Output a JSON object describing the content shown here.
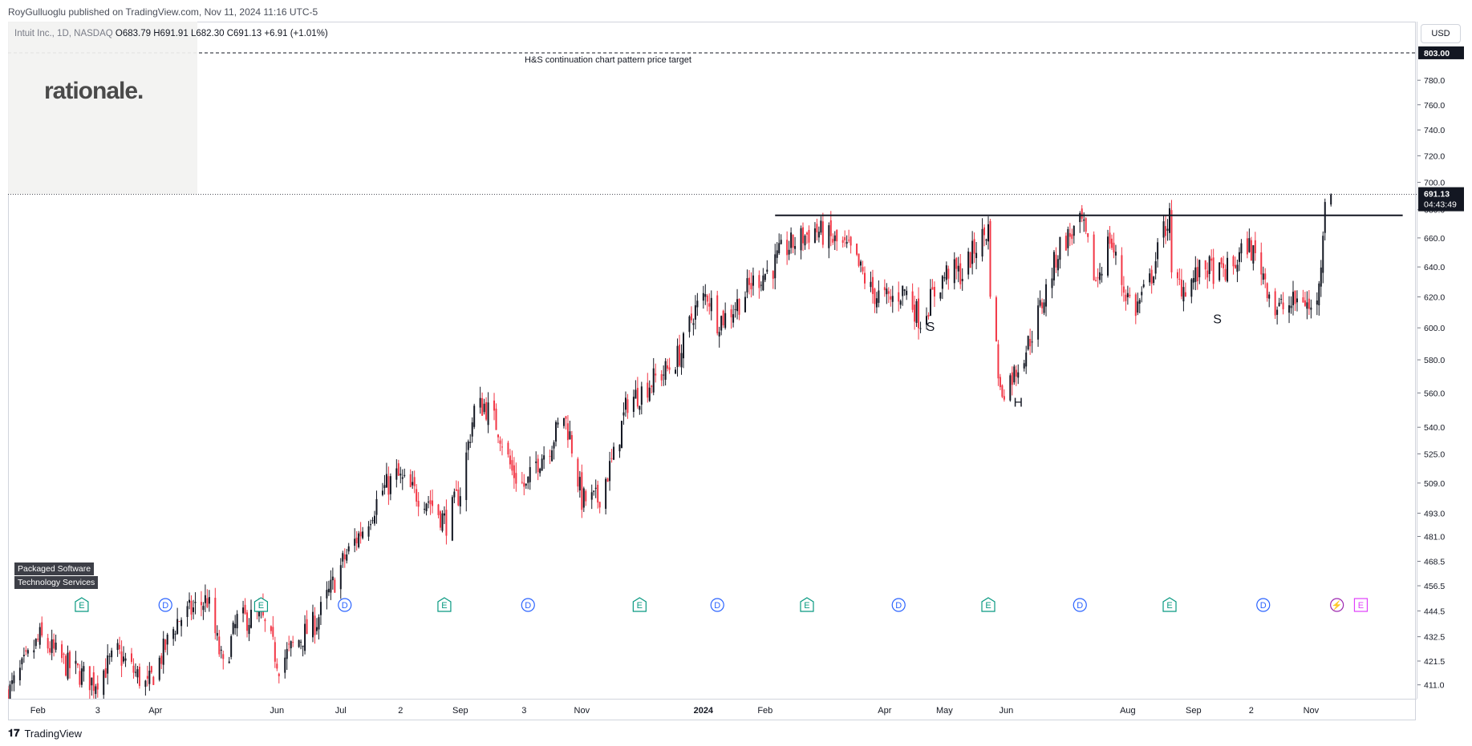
{
  "header": {
    "published": "RoyGulluoglu published on TradingView.com, Nov 11, 2024 11:16 UTC-5"
  },
  "legend": {
    "symbol": "Intuit Inc., 1D, NASDAQ",
    "open": "O683.79",
    "high": "H691.91",
    "low": "L682.30",
    "close": "C691.13",
    "change": "+6.91 (+1.01%)"
  },
  "currency": "USD",
  "watermark": "rationale.",
  "sectors": [
    "Packaged Software",
    "Technology Services"
  ],
  "annotations": {
    "target_label": "H&S continuation chart pattern price target",
    "target_price": "803.00",
    "last_price": "691.13",
    "countdown": "04:43:49",
    "left_shoulder": "S",
    "head": "H",
    "right_shoulder": "S"
  },
  "footer": {
    "brand": "TradingView"
  },
  "colors": {
    "up": "#131722",
    "down": "#f23645",
    "dividend": "#2962ff",
    "earnings": "#089981",
    "split": "#9c27b0",
    "earnings_future": "#e040fb"
  },
  "chart_data": {
    "type": "candlestick",
    "scale": "log",
    "ylim": [
      405,
      830
    ],
    "y_ticks": [
      411.0,
      421.5,
      432.5,
      444.5,
      456.5,
      468.5,
      481.0,
      493.0,
      509.0,
      525.0,
      540.0,
      560.0,
      580.0,
      600.0,
      620.0,
      640.0,
      660.0,
      680.0,
      700.0,
      720.0,
      740.0,
      760.0,
      780.0
    ],
    "x_ticks": [
      "Feb",
      "3",
      "Apr",
      "Jun",
      "Jul",
      "2",
      "Sep",
      "3",
      "Nov",
      "2024",
      "Feb",
      "Apr",
      "May",
      "Jun",
      "Aug",
      "Sep",
      "2",
      "Nov"
    ],
    "x_tick_dates": [
      "2023-02-01",
      "2023-03-03",
      "2023-04-01",
      "2023-06-01",
      "2023-07-03",
      "2023-08-02",
      "2023-09-01",
      "2023-10-03",
      "2023-11-01",
      "2024-01-01",
      "2024-02-01",
      "2024-04-01",
      "2024-05-01",
      "2024-06-01",
      "2024-08-01",
      "2024-09-03",
      "2024-10-02",
      "2024-11-01"
    ],
    "x_range": [
      "2023-01-17",
      "2024-12-24"
    ],
    "resistance": {
      "price": 676,
      "from": "2024-02-06",
      "to": "2024-12-17"
    },
    "target": 803,
    "last_close": 691.13,
    "events": [
      {
        "type": "E",
        "date": "2023-02-23"
      },
      {
        "type": "D",
        "date": "2023-04-06"
      },
      {
        "type": "E",
        "date": "2023-05-24"
      },
      {
        "type": "D",
        "date": "2023-07-05"
      },
      {
        "type": "E",
        "date": "2023-08-24"
      },
      {
        "type": "D",
        "date": "2023-10-05"
      },
      {
        "type": "E",
        "date": "2023-11-30"
      },
      {
        "type": "D",
        "date": "2024-01-08"
      },
      {
        "type": "E",
        "date": "2024-02-22"
      },
      {
        "type": "D",
        "date": "2024-04-08"
      },
      {
        "type": "E",
        "date": "2024-05-23"
      },
      {
        "type": "D",
        "date": "2024-07-08"
      },
      {
        "type": "E",
        "date": "2024-08-22"
      },
      {
        "type": "D",
        "date": "2024-10-08"
      },
      {
        "type": "split",
        "date": "2024-11-14"
      },
      {
        "type": "E_future",
        "date": "2024-11-26"
      }
    ],
    "path_dates": [
      "2023-01-17",
      "2023-02-02",
      "2023-02-15",
      "2023-03-01",
      "2023-03-13",
      "2023-03-28",
      "2023-04-12",
      "2023-04-27",
      "2023-05-05",
      "2023-05-12",
      "2023-05-24",
      "2023-06-02",
      "2023-06-09",
      "2023-06-21",
      "2023-07-05",
      "2023-07-14",
      "2023-07-24",
      "2023-07-31",
      "2023-08-07",
      "2023-08-16",
      "2023-08-25",
      "2023-09-01",
      "2023-09-08",
      "2023-09-13",
      "2023-09-20",
      "2023-09-27",
      "2023-10-04",
      "2023-10-09",
      "2023-10-16",
      "2023-10-23",
      "2023-10-26",
      "2023-11-01",
      "2023-11-09",
      "2023-11-17",
      "2023-11-24",
      "2023-11-30",
      "2023-12-07",
      "2023-12-14",
      "2023-12-21",
      "2023-12-27",
      "2024-01-03",
      "2024-01-08",
      "2024-01-12",
      "2024-01-19",
      "2024-01-26",
      "2024-02-05",
      "2024-02-09",
      "2024-02-16",
      "2024-02-26",
      "2024-03-04",
      "2024-03-15",
      "2024-03-26",
      "2024-04-04",
      "2024-04-11",
      "2024-04-19",
      "2024-04-26",
      "2024-05-03",
      "2024-05-10",
      "2024-05-17",
      "2024-05-23",
      "2024-05-24",
      "2024-05-29",
      "2024-06-05",
      "2024-06-12",
      "2024-06-20",
      "2024-06-28",
      "2024-07-09",
      "2024-07-16",
      "2024-07-23",
      "2024-07-30",
      "2024-08-05",
      "2024-08-12",
      "2024-08-19",
      "2024-08-22",
      "2024-08-23",
      "2024-08-30",
      "2024-09-09",
      "2024-09-16",
      "2024-09-23",
      "2024-09-30",
      "2024-10-07",
      "2024-10-14",
      "2024-10-21",
      "2024-10-28",
      "2024-11-01",
      "2024-11-05",
      "2024-11-08",
      "2024-11-11"
    ],
    "path_closes": [
      407,
      432,
      420,
      412,
      425,
      410,
      440,
      450,
      418,
      440,
      442,
      420,
      428,
      440,
      470,
      485,
      505,
      513,
      505,
      500,
      488,
      505,
      550,
      553,
      540,
      515,
      506,
      520,
      530,
      547,
      535,
      500,
      500,
      523,
      555,
      560,
      568,
      574,
      585,
      610,
      622,
      605,
      607,
      617,
      630,
      640,
      650,
      657,
      666,
      660,
      650,
      622,
      618,
      625,
      605,
      623,
      638,
      635,
      655,
      666,
      628,
      560,
      572,
      590,
      620,
      655,
      670,
      630,
      660,
      625,
      612,
      630,
      665,
      675,
      630,
      627,
      640,
      635,
      640,
      656,
      640,
      612,
      614,
      620,
      610,
      625,
      690,
      691
    ]
  }
}
